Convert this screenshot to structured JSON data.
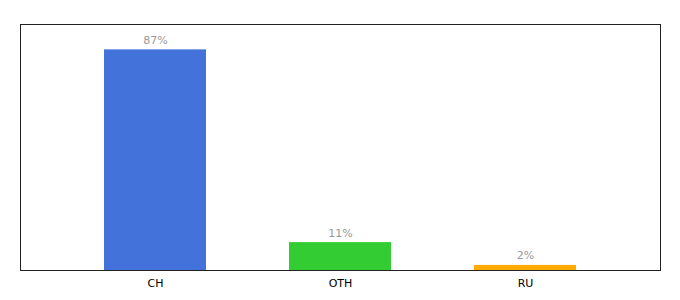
{
  "chart_data": {
    "type": "bar",
    "categories": [
      "CH",
      "OTH",
      "RU"
    ],
    "values": [
      87,
      11,
      2
    ],
    "value_labels": [
      "87%",
      "11%",
      "2%"
    ],
    "colors": [
      "#4472db",
      "#33cc33",
      "#ffaa00"
    ],
    "ylim": [
      0,
      97
    ],
    "data_labels": true,
    "tick_labels": "x"
  }
}
